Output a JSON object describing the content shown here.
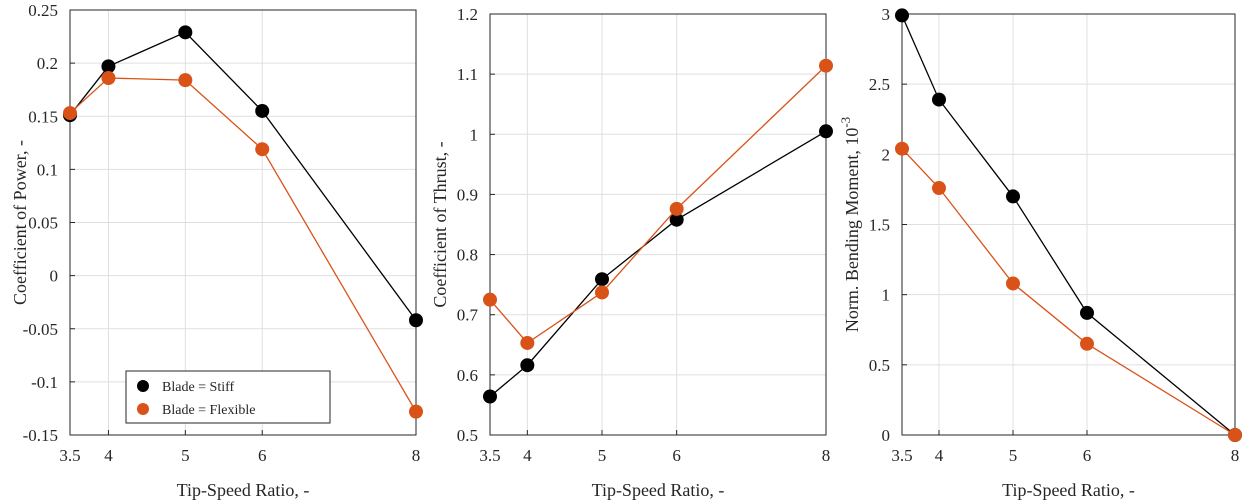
{
  "colors": {
    "stiff": "#000000",
    "flexible": "#D95319"
  },
  "chart_data": [
    {
      "type": "line",
      "xlabel": "Tip-Speed Ratio, -",
      "ylabel": "Coefficient of Power, -",
      "ylabel_exponent": "",
      "x": [
        3.5,
        4,
        5,
        6,
        8
      ],
      "xticks": [
        "3.5",
        "4",
        "5",
        "6",
        "8"
      ],
      "xlim": [
        3.5,
        8
      ],
      "ylim": [
        -0.15,
        0.25
      ],
      "yticks": [
        -0.15,
        -0.1,
        -0.05,
        0,
        0.05,
        0.1,
        0.15,
        0.2,
        0.25
      ],
      "yticklabels": [
        "-0.15",
        "-0.1",
        "-0.05",
        "0",
        "0.05",
        "0.1",
        "0.15",
        "0.2",
        "0.25"
      ],
      "grid": true,
      "legend": "bottom-left",
      "series": [
        {
          "name": "Blade = Stiff",
          "color_key": "stiff",
          "values": [
            0.151,
            0.197,
            0.229,
            0.155,
            -0.042
          ]
        },
        {
          "name": "Blade = Flexible",
          "color_key": "flexible",
          "values": [
            0.153,
            0.186,
            0.184,
            0.119,
            -0.128
          ]
        }
      ]
    },
    {
      "type": "line",
      "xlabel": "Tip-Speed Ratio, -",
      "ylabel": "Coefficient of Thrust, -",
      "ylabel_exponent": "",
      "x": [
        3.5,
        4,
        5,
        6,
        8
      ],
      "xticks": [
        "3.5",
        "4",
        "5",
        "6",
        "8"
      ],
      "xlim": [
        3.5,
        8
      ],
      "ylim": [
        0.5,
        1.2
      ],
      "yticks": [
        0.5,
        0.6,
        0.7,
        0.8,
        0.9,
        1.0,
        1.1,
        1.2
      ],
      "yticklabels": [
        "0.5",
        "0.6",
        "0.7",
        "0.8",
        "0.9",
        "1",
        "1.1",
        "1.2"
      ],
      "grid": true,
      "legend": "none",
      "series": [
        {
          "name": "Blade = Stiff",
          "color_key": "stiff",
          "values": [
            0.564,
            0.616,
            0.759,
            0.858,
            1.005
          ]
        },
        {
          "name": "Blade = Flexible",
          "color_key": "flexible",
          "values": [
            0.725,
            0.653,
            0.737,
            0.876,
            1.114
          ]
        }
      ]
    },
    {
      "type": "line",
      "xlabel": "Tip-Speed Ratio, -",
      "ylabel": "Norm. Bending Moment, 10",
      "ylabel_exponent": "-3",
      "x": [
        3.5,
        4,
        5,
        6,
        8
      ],
      "xticks": [
        "3.5",
        "4",
        "5",
        "6",
        "8"
      ],
      "xlim": [
        3.5,
        8
      ],
      "ylim": [
        0,
        3
      ],
      "yticks": [
        0,
        0.5,
        1,
        1.5,
        2,
        2.5,
        3
      ],
      "yticklabels": [
        "0",
        "0.5",
        "1",
        "1.5",
        "2",
        "2.5",
        "3"
      ],
      "grid": true,
      "legend": "none",
      "series": [
        {
          "name": "Blade = Stiff",
          "color_key": "stiff",
          "values": [
            2.99,
            2.39,
            1.7,
            0.87,
            0.0
          ]
        },
        {
          "name": "Blade = Flexible",
          "color_key": "flexible",
          "values": [
            2.04,
            1.76,
            1.08,
            0.65,
            0.0
          ]
        }
      ]
    }
  ]
}
